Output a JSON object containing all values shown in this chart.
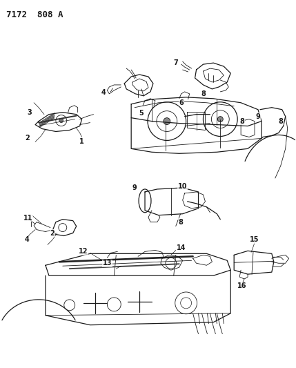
{
  "title": "7172  808 A",
  "bg_color": "#ffffff",
  "line_color": "#1a1a1a",
  "title_fontsize": 9,
  "fig_width": 4.29,
  "fig_height": 5.33,
  "dpi": 100,
  "label_fontsize": 7
}
